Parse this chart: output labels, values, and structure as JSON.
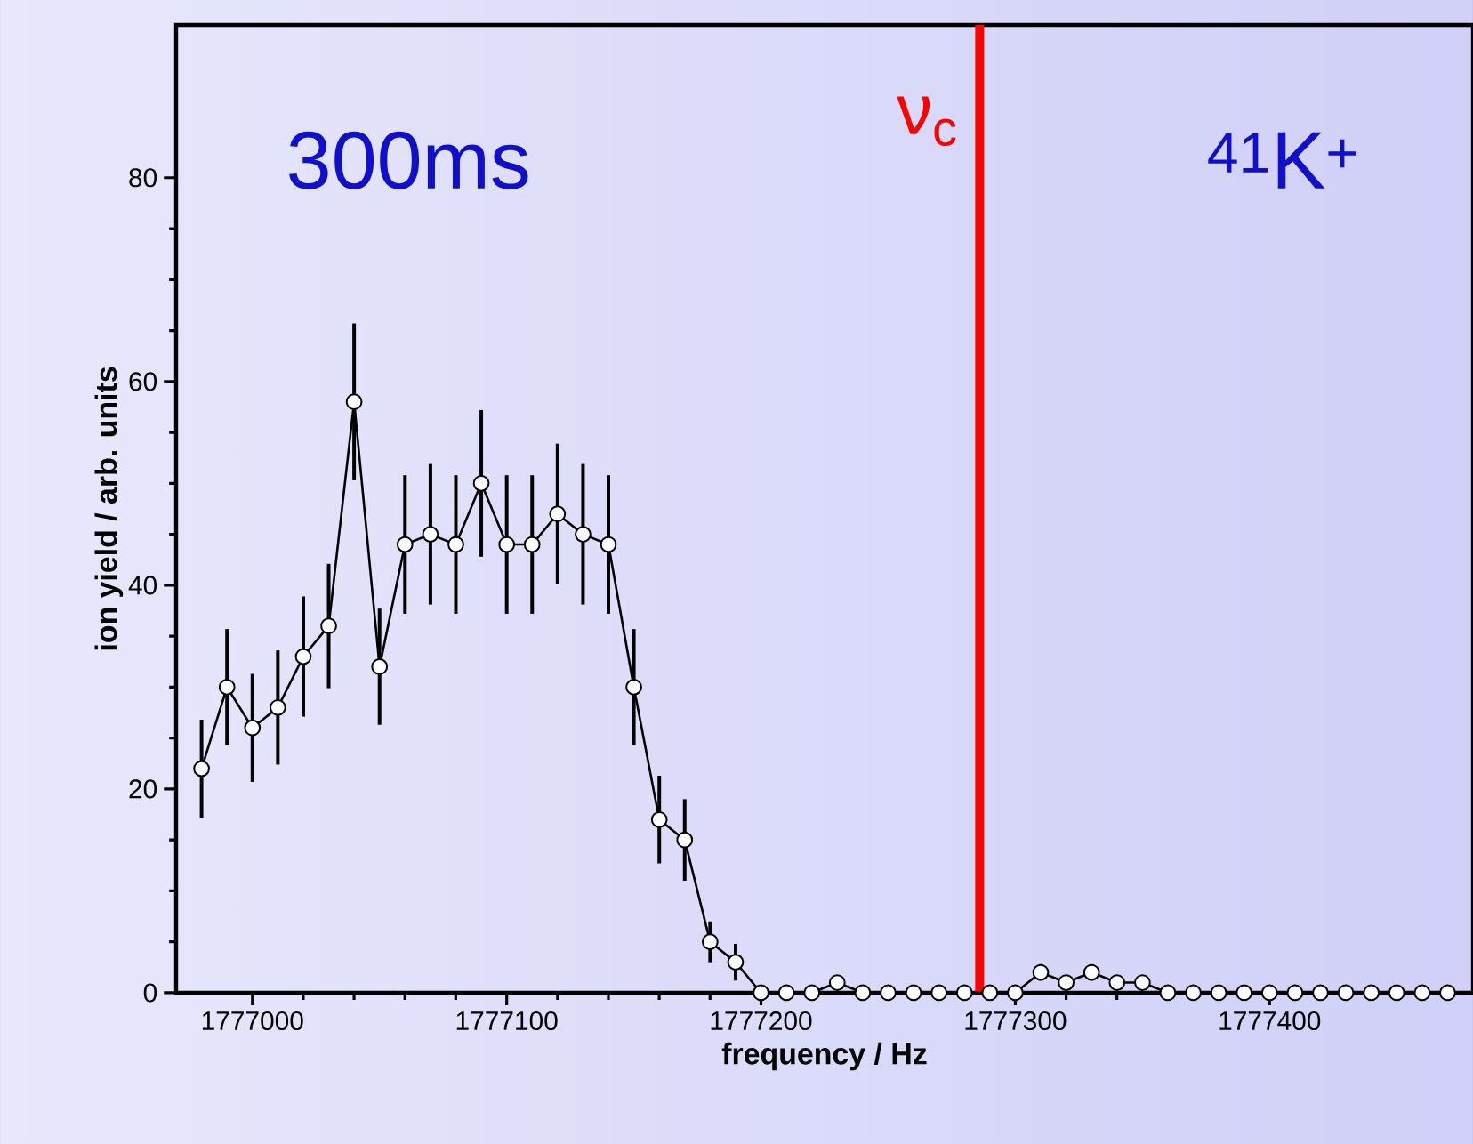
{
  "chart_data": {
    "type": "line",
    "xlabel": "frequency / Hz",
    "ylabel": "ion yield / arb. units",
    "x": [
      1776980,
      1776990,
      1777000,
      1777010,
      1777020,
      1777030,
      1777040,
      1777050,
      1777060,
      1777070,
      1777080,
      1777090,
      1777100,
      1777110,
      1777120,
      1777130,
      1777140,
      1777150,
      1777160,
      1777170,
      1777180,
      1777190,
      1777200,
      1777210,
      1777220,
      1777230,
      1777240,
      1777250,
      1777260,
      1777270,
      1777280,
      1777290,
      1777300,
      1777310,
      1777320,
      1777330,
      1777340,
      1777350,
      1777360,
      1777370,
      1777380,
      1777390,
      1777400,
      1777410,
      1777420,
      1777430,
      1777440,
      1777450,
      1777460,
      1777470
    ],
    "series": [
      {
        "color": "#000000",
        "values": [
          22,
          30,
          26,
          28,
          33,
          36,
          58,
          32,
          44,
          45,
          44,
          50,
          44,
          44,
          47,
          45,
          44,
          30,
          17,
          15,
          5,
          3,
          0,
          0,
          0,
          1,
          0,
          0,
          0,
          0,
          0,
          0,
          0,
          2,
          1,
          2,
          1,
          1,
          0,
          0,
          0,
          0,
          0,
          0,
          0,
          0,
          0,
          0,
          0,
          0
        ],
        "errors": [
          4.8,
          5.7,
          5.3,
          5.6,
          5.9,
          6.1,
          7.7,
          5.7,
          6.8,
          6.9,
          6.8,
          7.2,
          6.8,
          6.8,
          6.9,
          6.9,
          6.8,
          5.7,
          4.3,
          4,
          2,
          1.8,
          null,
          null,
          null,
          null,
          null,
          null,
          null,
          null,
          null,
          null,
          null,
          0.8,
          null,
          0.8,
          null,
          null,
          null,
          null,
          null,
          null,
          null,
          null,
          null,
          null,
          null,
          null,
          null,
          null
        ]
      }
    ],
    "xlim": [
      1776970,
      1777480
    ],
    "ylim": [
      0,
      95
    ],
    "xticks": [
      1777000,
      1777100,
      1777200,
      1777300,
      1777400
    ],
    "yticks": [
      0,
      20,
      40,
      60,
      80
    ],
    "marker": "circle",
    "line_style": "solid",
    "ref_lines": [
      {
        "axis": "x",
        "value": 1777286,
        "label": "ν$_{c}$",
        "color": "#ff0000"
      }
    ],
    "annotations": [
      "300ms",
      "$^{41}$K$^{+}$"
    ]
  }
}
